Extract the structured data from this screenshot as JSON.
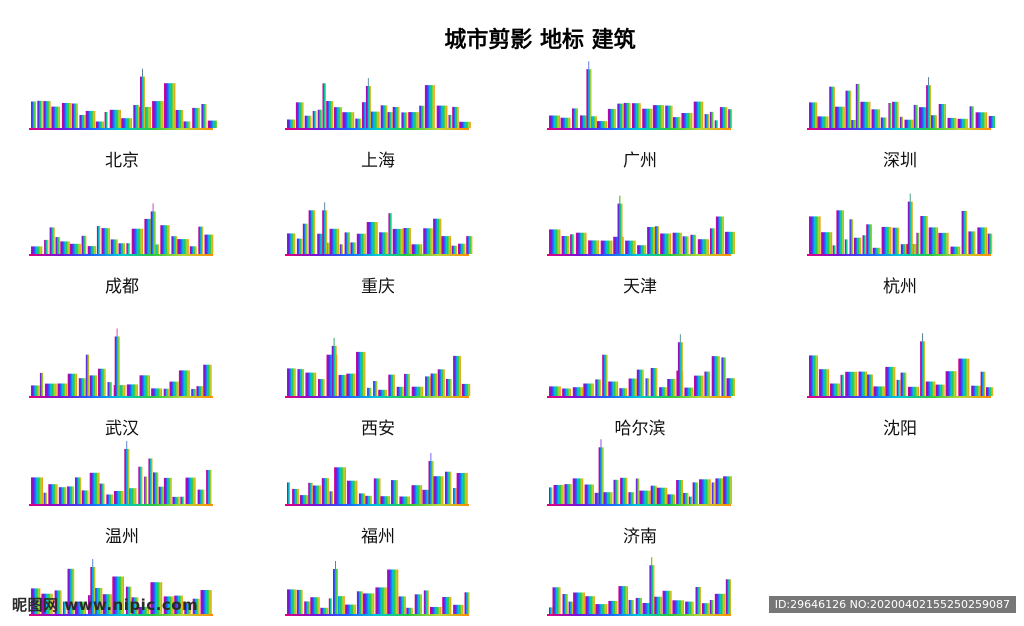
{
  "title": "城市剪影 地标 建筑",
  "rainbow": [
    "#e6007e",
    "#7a12d6",
    "#1f62ff",
    "#00c8d6",
    "#28c840",
    "#b9d63a",
    "#ff8c00"
  ],
  "cities": [
    {
      "name": "北京",
      "seed": 3,
      "landmark": "temple-icon"
    },
    {
      "name": "上海",
      "seed": 7,
      "landmark": "tv-tower-icon"
    },
    {
      "name": "广州",
      "seed": 11,
      "landmark": "canton-tower-icon"
    },
    {
      "name": "深圳",
      "seed": 13,
      "landmark": "skyscraper-icon"
    },
    {
      "name": "成都",
      "seed": 17,
      "landmark": "bridge-icon"
    },
    {
      "name": "重庆",
      "seed": 19,
      "landmark": "skyscraper-icon"
    },
    {
      "name": "天津",
      "seed": 23,
      "landmark": "ferris-wheel-icon"
    },
    {
      "name": "杭州",
      "seed": 29,
      "landmark": "pagoda-icon"
    },
    {
      "name": "武汉",
      "seed": 31,
      "landmark": "pagoda-icon"
    },
    {
      "name": "西安",
      "seed": 37,
      "landmark": "pagoda-icon"
    },
    {
      "name": "哈尔滨",
      "seed": 41,
      "landmark": "tv-tower-icon"
    },
    {
      "name": "沈阳",
      "seed": 43,
      "landmark": "arch-icon"
    },
    {
      "name": "温州",
      "seed": 47,
      "landmark": "skyscraper-icon"
    },
    {
      "name": "福州",
      "seed": 53,
      "landmark": "pagoda-icon"
    },
    {
      "name": "济南",
      "seed": 59,
      "landmark": "skyscraper-icon"
    },
    {
      "name": "",
      "seed": 61,
      "landmark": "skyscraper-icon"
    },
    {
      "name": "",
      "seed": 67,
      "landmark": "pagoda-icon"
    },
    {
      "name": "",
      "seed": 71,
      "landmark": "skyscraper-icon"
    }
  ],
  "watermark": {
    "left": "昵图网 www.nipic.com",
    "right": "ID:29646126 NO:20200402155250259087"
  }
}
